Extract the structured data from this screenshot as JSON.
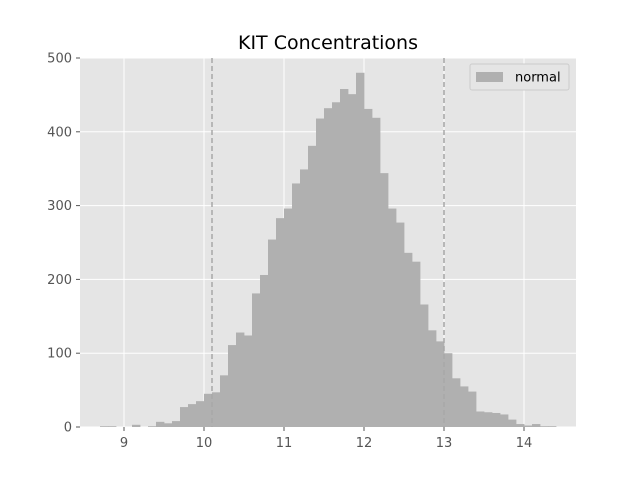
{
  "chart_data": {
    "type": "bar",
    "title": "KIT Concentrations",
    "xlabel": "",
    "ylabel": "",
    "xlim": [
      8.45,
      14.65
    ],
    "ylim": [
      0,
      500
    ],
    "x_ticks": [
      9,
      10,
      11,
      12,
      13,
      14
    ],
    "y_ticks": [
      0,
      100,
      200,
      300,
      400,
      500
    ],
    "grid": true,
    "legend_position": "top-right",
    "bin_width": 0.1,
    "reference_lines": [
      10.1,
      13.0
    ],
    "series": [
      {
        "name": "normal",
        "color": "#b0b0b0",
        "bin_starts": [
          8.7,
          8.8,
          8.9,
          9.0,
          9.1,
          9.2,
          9.3,
          9.4,
          9.5,
          9.6,
          9.7,
          9.8,
          9.9,
          10.0,
          10.1,
          10.2,
          10.3,
          10.4,
          10.5,
          10.6,
          10.7,
          10.8,
          10.9,
          11.0,
          11.1,
          11.2,
          11.3,
          11.4,
          11.5,
          11.6,
          11.7,
          11.8,
          11.9,
          12.0,
          12.1,
          12.2,
          12.3,
          12.4,
          12.5,
          12.6,
          12.7,
          12.8,
          12.9,
          13.0,
          13.1,
          13.2,
          13.3,
          13.4,
          13.5,
          13.6,
          13.7,
          13.8,
          13.9,
          14.0,
          14.1,
          14.2,
          14.3
        ],
        "values": [
          1,
          1,
          0,
          0,
          3,
          0,
          1,
          7,
          5,
          8,
          27,
          31,
          35,
          45,
          47,
          70,
          111,
          128,
          124,
          181,
          206,
          254,
          283,
          296,
          330,
          349,
          381,
          418,
          432,
          440,
          458,
          451,
          480,
          431,
          419,
          344,
          296,
          277,
          236,
          224,
          166,
          131,
          116,
          100,
          66,
          55,
          48,
          21,
          20,
          19,
          17,
          10,
          4,
          2,
          4,
          1,
          1
        ]
      }
    ]
  }
}
